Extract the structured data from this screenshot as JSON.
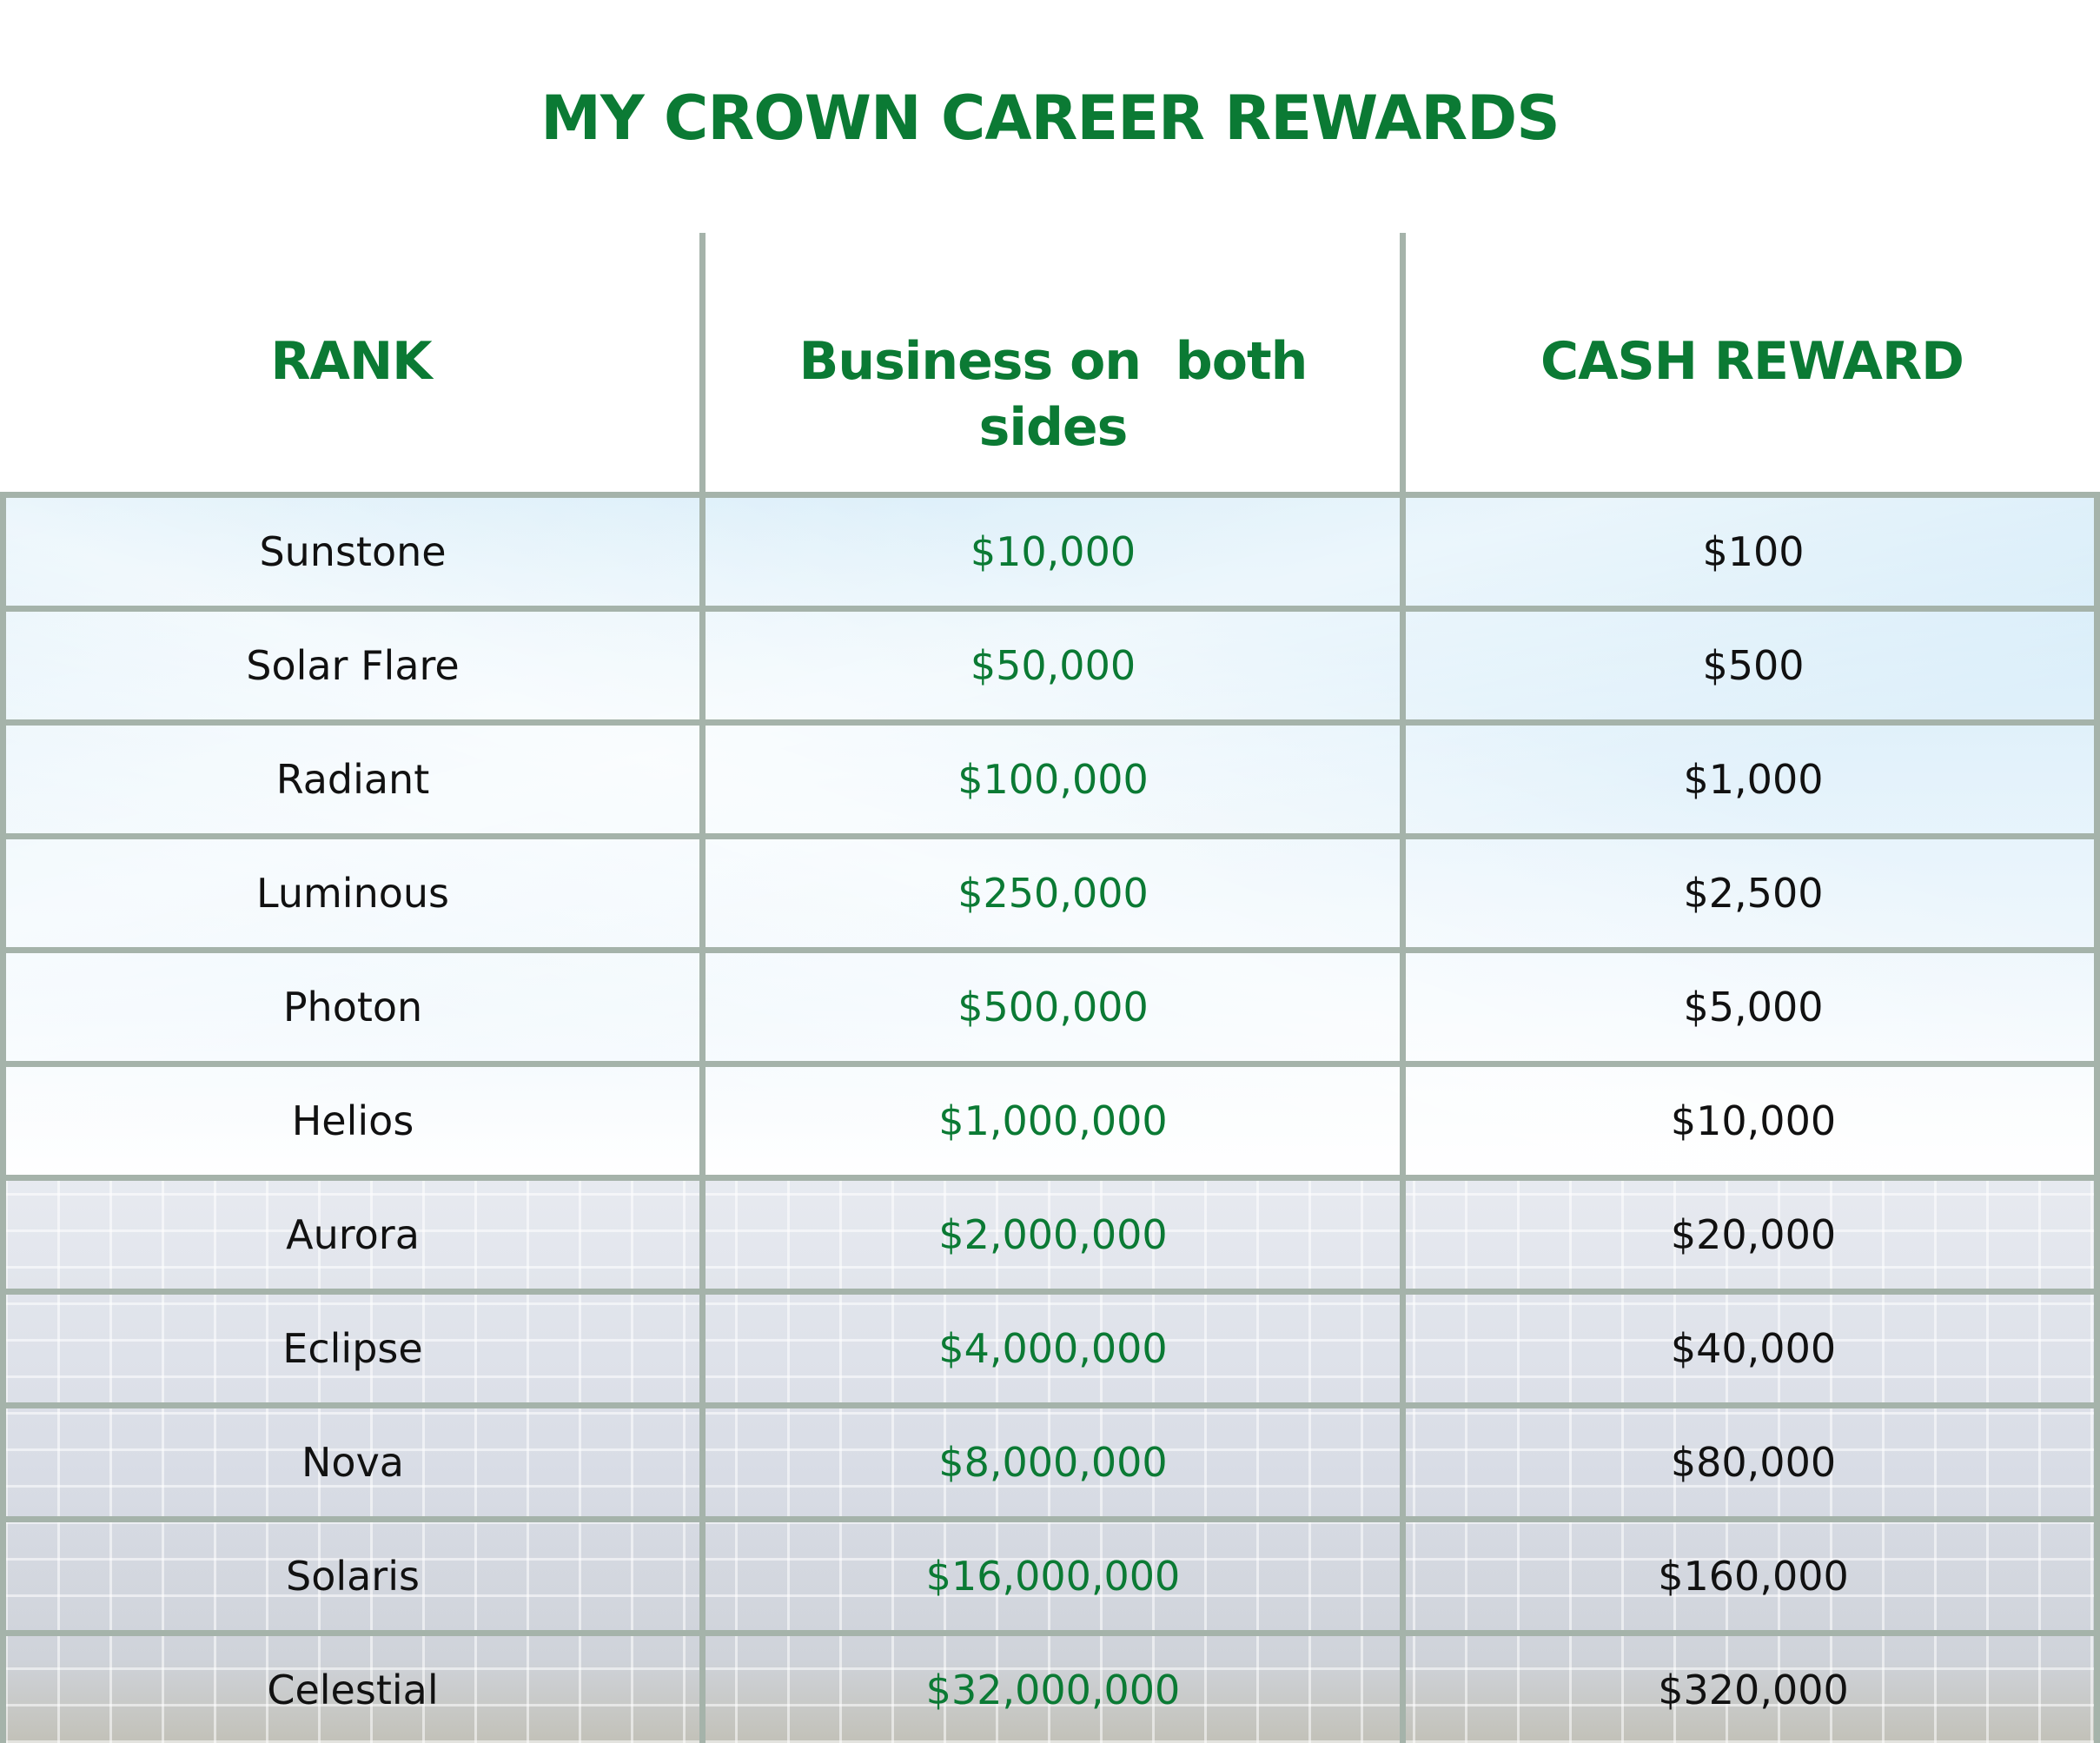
{
  "title": "MY CROWN CAREER REWARDS",
  "headers": {
    "rank": "RANK",
    "business_line1": "Business on  both",
    "business_line2": "sides",
    "cash": "CASH REWARD"
  },
  "rows": [
    {
      "rank": "Sunstone",
      "business": "$10,000",
      "cash": "$100"
    },
    {
      "rank": "Solar Flare",
      "business": "$50,000",
      "cash": "$500"
    },
    {
      "rank": "Radiant",
      "business": "$100,000",
      "cash": "$1,000"
    },
    {
      "rank": "Luminous",
      "business": "$250,000",
      "cash": "$2,500"
    },
    {
      "rank": "Photon",
      "business": "$500,000",
      "cash": "$5,000"
    },
    {
      "rank": "Helios",
      "business": "$1,000,000",
      "cash": "$10,000"
    },
    {
      "rank": "Aurora",
      "business": "$2,000,000",
      "cash": "$20,000"
    },
    {
      "rank": "Eclipse",
      "business": "$4,000,000",
      "cash": "$40,000"
    },
    {
      "rank": "Nova",
      "business": "$8,000,000",
      "cash": "$80,000"
    },
    {
      "rank": "Solaris",
      "business": "$16,000,000",
      "cash": "$160,000"
    },
    {
      "rank": "Celestial",
      "business": "$32,000,000",
      "cash": "$320,000"
    }
  ],
  "colors": {
    "accent": "#0b7a34",
    "grid": "#a5b3aa",
    "text": "#111111"
  }
}
